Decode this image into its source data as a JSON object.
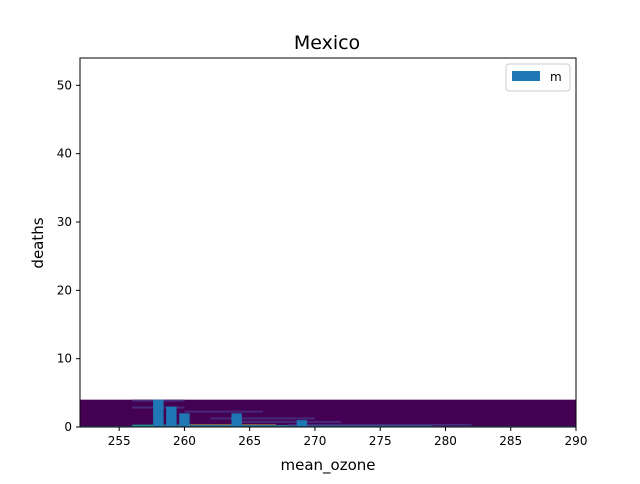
{
  "chart_data": {
    "type": "bar",
    "title": "Mexico",
    "xlabel": "mean_ozone",
    "ylabel": "deaths",
    "xlim": [
      252,
      290
    ],
    "ylim": [
      0,
      54
    ],
    "xticks": [
      255,
      260,
      265,
      270,
      275,
      280,
      285,
      290
    ],
    "yticks": [
      0,
      10,
      20,
      30,
      40,
      50
    ],
    "grid": false,
    "legend": {
      "placement": "top-right",
      "entries": [
        "m"
      ]
    },
    "series": [
      {
        "name": "m",
        "color": "#1f77b4",
        "x": [
          258,
          259,
          260,
          264,
          269
        ],
        "values": [
          4,
          3,
          2,
          2,
          1
        ]
      }
    ],
    "background_heatmap": {
      "colormap": "viridis",
      "base_color": "#440154",
      "y_range": [
        0,
        4
      ],
      "x_range": [
        252,
        290
      ],
      "strips": [
        {
          "x0": 252,
          "x1": 290,
          "y0": 0,
          "y1": 0.15,
          "color": "#3b528b"
        },
        {
          "x0": 256,
          "x1": 264,
          "y0": 0,
          "y1": 0.35,
          "color": "#21918c"
        },
        {
          "x0": 260,
          "x1": 267,
          "y0": 0,
          "y1": 0.35,
          "color": "#fde725"
        },
        {
          "x0": 258,
          "x1": 279,
          "y0": 0,
          "y1": 0.3,
          "color": "#2c728e"
        },
        {
          "x0": 256,
          "x1": 260,
          "y0": 3.7,
          "y1": 4.0,
          "color": "#482878"
        },
        {
          "x0": 256,
          "x1": 260,
          "y0": 2.7,
          "y1": 3.0,
          "color": "#482878"
        },
        {
          "x0": 260,
          "x1": 266,
          "y0": 2.1,
          "y1": 2.4,
          "color": "#482878"
        },
        {
          "x0": 262,
          "x1": 270,
          "y0": 1.1,
          "y1": 1.4,
          "color": "#482878"
        },
        {
          "x0": 264,
          "x1": 272,
          "y0": 0.6,
          "y1": 0.9,
          "color": "#482878"
        },
        {
          "x0": 268,
          "x1": 282,
          "y0": 0.2,
          "y1": 0.45,
          "color": "#472d7b"
        }
      ]
    }
  }
}
